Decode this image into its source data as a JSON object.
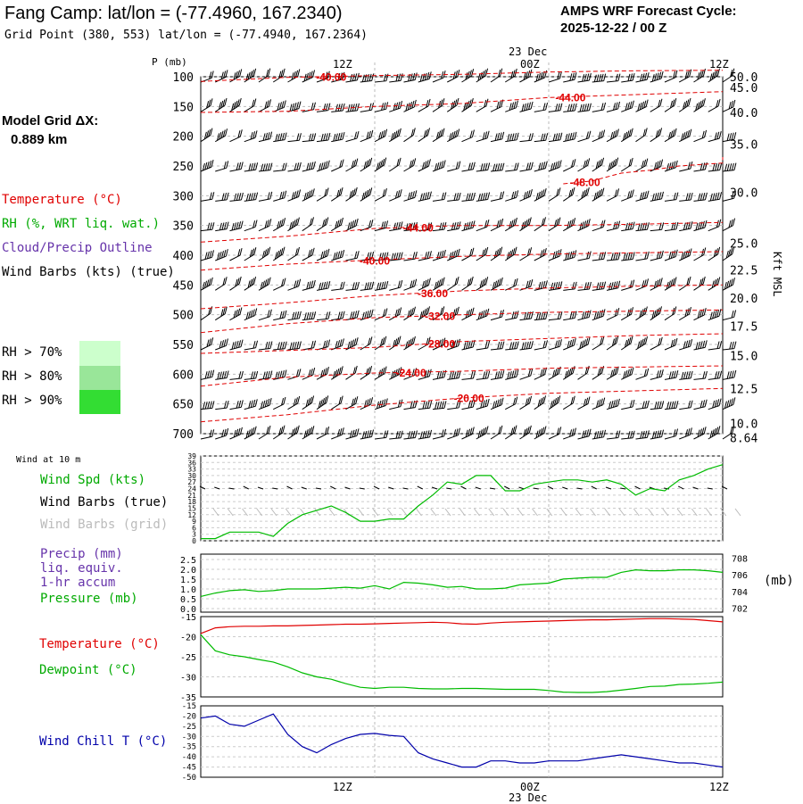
{
  "header": {
    "title": "Fang Camp:  lat/lon = (-77.4960, 167.2340)",
    "subtitle": "Grid Point (380, 553) lat/lon = (-77.4940, 167.2364)",
    "cycle_label": "AMPS WRF Forecast Cycle:",
    "cycle_value": "2025-12-22 / 00  Z"
  },
  "sidebar": {
    "model_grid_label": "Model Grid ΔX:",
    "model_grid_value": "0.889 km",
    "legend_temperature": "Temperature (°C)",
    "legend_rh": "RH (%, WRT liq. wat.)",
    "legend_cloud": "Cloud/Precip Outline",
    "legend_wind": "Wind Barbs (kts) (true)",
    "rh70": "RH > 70%",
    "rh80": "RH > 80%",
    "rh90": "RH > 90%"
  },
  "colors": {
    "temperature": "#e00000",
    "rh70": "#ccffcc",
    "rh80": "#99e699",
    "rh90": "#33dd33",
    "wind_speed": "#00bb00",
    "wind_chill": "#0000aa",
    "precip": "#6633aa",
    "grid_barb": "#bbbbbb"
  },
  "time_axis": {
    "top_date": "23 Dec",
    "bottom_date": "23 Dec",
    "ticks": [
      "12Z",
      "00Z",
      "12Z"
    ]
  },
  "chart_data": [
    {
      "type": "contour",
      "title": "Pressure-time cross section",
      "ylabel": "P (mb)",
      "pressure_ticks": [
        100,
        150,
        200,
        250,
        300,
        350,
        400,
        450,
        500,
        550,
        600,
        650,
        700
      ],
      "height_axis_label": "Kft MSL",
      "height_ticks": [
        "50.0",
        "45.0",
        "40.0",
        "35.0",
        "30.0",
        "25.0",
        "22.5",
        "20.0",
        "17.5",
        "15.0",
        "12.5",
        "10.0",
        "8.64"
      ],
      "height_tick_pressure": [
        100,
        118,
        160,
        213,
        294,
        380,
        425,
        472,
        519,
        569,
        624,
        683,
        707
      ],
      "x_hours": [
        0,
        36
      ],
      "temperature_contours": [
        {
          "label": "-40.00",
          "pressure": [
            108,
            101,
            98,
            96,
            92,
            90,
            89
          ],
          "hours": [
            0,
            6,
            12,
            18,
            24,
            30,
            36
          ],
          "label_hour": 9.0
        },
        {
          "label": "-44.00",
          "pressure": [
            160,
            158,
            150,
            145,
            135,
            130,
            125
          ],
          "hours": [
            0,
            6,
            12,
            18,
            24,
            30,
            36
          ],
          "label_hour": 25.5
        },
        {
          "label": "-48.00",
          "pressure": [
            280,
            275,
            262,
            257,
            250,
            245,
            235
          ],
          "hours": [
            25,
            27,
            29,
            31,
            33,
            36,
            36
          ],
          "label_hour": 26.5
        },
        {
          "label": "-44.00",
          "pressure": [
            378,
            368,
            355,
            350,
            350,
            348,
            345
          ],
          "hours": [
            0,
            6,
            12,
            18,
            24,
            30,
            36
          ],
          "label_hour": 15.0
        },
        {
          "label": "-40.00",
          "pressure": [
            425,
            415,
            408,
            402,
            398,
            396,
            394
          ],
          "hours": [
            0,
            6,
            12,
            18,
            24,
            30,
            36
          ],
          "label_hour": 12.0
        },
        {
          "label": "-36.00",
          "pressure": [
            490,
            480,
            468,
            460,
            455,
            452,
            450
          ],
          "hours": [
            0,
            6,
            12,
            18,
            24,
            30,
            36
          ],
          "label_hour": 16.0
        },
        {
          "label": "-32.00",
          "pressure": [
            530,
            515,
            505,
            500,
            496,
            494,
            492
          ],
          "hours": [
            0,
            6,
            12,
            18,
            24,
            30,
            36
          ],
          "label_hour": 16.5
        },
        {
          "label": "-28.00",
          "pressure": [
            565,
            560,
            555,
            545,
            540,
            535,
            532
          ],
          "hours": [
            0,
            6,
            12,
            18,
            24,
            30,
            36
          ],
          "label_hour": 16.5
        },
        {
          "label": "-24.00",
          "pressure": [
            620,
            605,
            598,
            595,
            590,
            588,
            586
          ],
          "hours": [
            0,
            6,
            12,
            18,
            24,
            30,
            36
          ],
          "label_hour": 14.5
        },
        {
          "label": "-20.00",
          "pressure": [
            680,
            668,
            652,
            640,
            632,
            628,
            624
          ],
          "hours": [
            0,
            6,
            12,
            18,
            24,
            30,
            36
          ],
          "label_hour": 18.5
        }
      ]
    },
    {
      "type": "line",
      "title": "Wind at 10 m",
      "series_name": "Wind Spd (kts)",
      "barbs_true_label": "Wind Barbs (true)",
      "barbs_grid_label": "Wind Barbs (grid)",
      "yticks": [
        39,
        36,
        33,
        30,
        27,
        24,
        21,
        18,
        15,
        12,
        9,
        6,
        3,
        0
      ],
      "ylim": [
        0,
        39
      ],
      "x": [
        0,
        1,
        2,
        3,
        4,
        5,
        6,
        7,
        8,
        9,
        10,
        11,
        12,
        13,
        14,
        15,
        16,
        17,
        18,
        19,
        20,
        21,
        22,
        23,
        24,
        25,
        26,
        27,
        28,
        29,
        30,
        31,
        32,
        33,
        34,
        35,
        36
      ],
      "values": [
        1,
        1,
        4,
        4,
        4,
        2,
        8,
        12,
        14,
        16,
        13,
        9,
        9,
        10,
        10,
        16,
        21,
        27,
        26,
        30,
        30,
        23,
        23,
        26,
        27,
        28,
        28,
        27,
        28,
        26,
        21,
        24,
        23,
        28,
        30,
        33,
        35
      ]
    },
    {
      "type": "line",
      "title": "Precip / Pressure",
      "precip_label": "Precip (mm)",
      "precip_label2": "liq. equiv.",
      "precip_label3": "1-hr accum",
      "pressure_label": "Pressure (mb)",
      "right_unit": "(mb)",
      "yticks_left": [
        "2.5",
        "2.0",
        "1.5",
        "1.0",
        "0.5",
        "0.0"
      ],
      "yticks_right": [
        "708",
        "706",
        "704",
        "702"
      ],
      "ylim_right": [
        701.5,
        708.5
      ],
      "x": [
        0,
        1,
        2,
        3,
        4,
        5,
        6,
        7,
        8,
        9,
        10,
        11,
        12,
        13,
        14,
        15,
        16,
        17,
        18,
        19,
        20,
        21,
        22,
        23,
        24,
        25,
        26,
        27,
        28,
        29,
        30,
        31,
        32,
        33,
        34,
        35,
        36
      ],
      "pressure_values": [
        703.4,
        703.8,
        704.1,
        704.2,
        704.0,
        704.1,
        704.3,
        704.3,
        704.3,
        704.4,
        704.5,
        704.4,
        704.7,
        704.3,
        705.1,
        705.0,
        704.8,
        704.5,
        704.6,
        704.3,
        704.3,
        704.4,
        704.8,
        704.9,
        705.0,
        705.5,
        705.6,
        705.7,
        705.7,
        706.3,
        706.6,
        706.5,
        706.5,
        706.6,
        706.6,
        706.5,
        706.3
      ]
    },
    {
      "type": "line",
      "title": "Temperature / Dewpoint",
      "temperature_label": "Temperature (°C)",
      "dewpoint_label": "Dewpoint (°C)",
      "yticks": [
        -15,
        -20,
        -25,
        -30,
        -35
      ],
      "ylim": [
        -35,
        -15
      ],
      "x": [
        0,
        1,
        2,
        3,
        4,
        5,
        6,
        7,
        8,
        9,
        10,
        11,
        12,
        13,
        14,
        15,
        16,
        17,
        18,
        19,
        20,
        21,
        22,
        23,
        24,
        25,
        26,
        27,
        28,
        29,
        30,
        31,
        32,
        33,
        34,
        35,
        36
      ],
      "temperature": [
        -19.2,
        -17.8,
        -17.5,
        -17.4,
        -17.4,
        -17.3,
        -17.3,
        -17.2,
        -17.1,
        -17.0,
        -16.9,
        -16.9,
        -16.8,
        -16.7,
        -16.6,
        -16.5,
        -16.4,
        -16.5,
        -16.8,
        -16.9,
        -16.6,
        -16.4,
        -16.3,
        -16.2,
        -16.1,
        -16.0,
        -15.9,
        -15.8,
        -15.8,
        -15.7,
        -15.6,
        -15.5,
        -15.5,
        -15.6,
        -15.7,
        -16.0,
        -16.3
      ],
      "dewpoint": [
        -19.5,
        -23.5,
        -24.5,
        -25.0,
        -25.7,
        -26.3,
        -27.5,
        -29.0,
        -30.0,
        -30.6,
        -31.7,
        -32.6,
        -32.9,
        -32.6,
        -32.6,
        -32.9,
        -33.0,
        -33.0,
        -32.9,
        -32.9,
        -33.0,
        -33.1,
        -33.1,
        -33.1,
        -33.4,
        -33.8,
        -33.9,
        -33.9,
        -33.7,
        -33.3,
        -32.9,
        -32.4,
        -32.3,
        -31.9,
        -31.8,
        -31.6,
        -31.3
      ]
    },
    {
      "type": "line",
      "title": "Wind Chill",
      "series_name": "Wind Chill T (°C)",
      "yticks": [
        -15,
        -20,
        -25,
        -30,
        -35,
        -40,
        -45,
        -50
      ],
      "ylim": [
        -50,
        -15
      ],
      "x": [
        0,
        1,
        2,
        3,
        4,
        5,
        6,
        7,
        8,
        9,
        10,
        11,
        12,
        13,
        14,
        15,
        16,
        17,
        18,
        19,
        20,
        21,
        22,
        23,
        24,
        25,
        26,
        27,
        28,
        29,
        30,
        31,
        32,
        33,
        34,
        35,
        36
      ],
      "values": [
        -21,
        -20,
        -24,
        -25,
        -22,
        -19,
        -29,
        -35,
        -38,
        -34,
        -31,
        -29,
        -28.5,
        -29.5,
        -30,
        -38,
        -41,
        -43,
        -45,
        -45,
        -42,
        -42,
        -43,
        -43,
        -42,
        -42,
        -42,
        -41,
        -40,
        -39,
        -40,
        -41,
        -42,
        -43,
        -43,
        -44,
        -45
      ]
    }
  ]
}
